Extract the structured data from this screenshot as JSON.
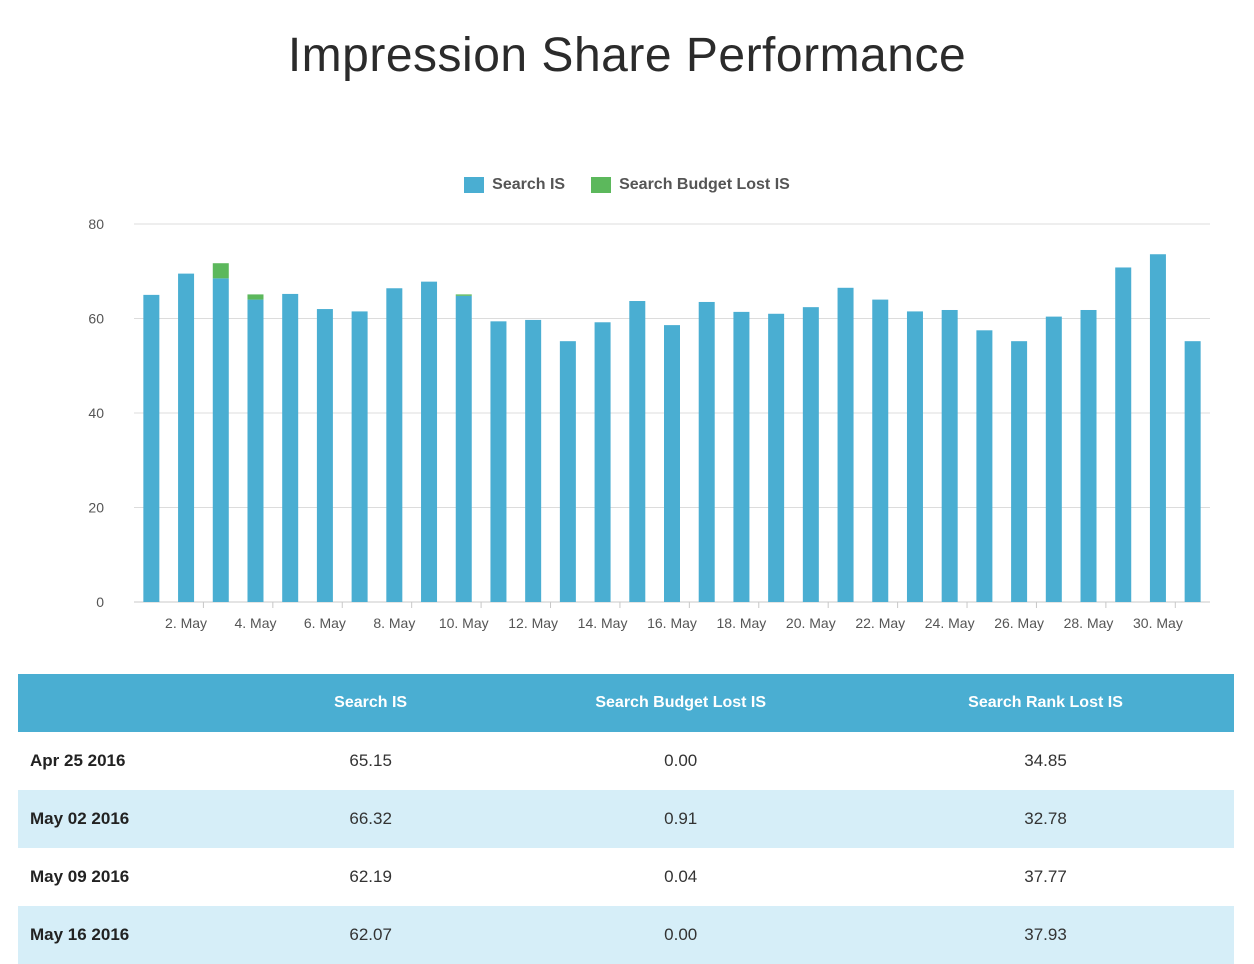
{
  "page": {
    "title": "Impression Share Performance"
  },
  "colors": {
    "search_is": "#4aaed2",
    "budget_lost": "#5cb85c",
    "header_bg": "#4aaed2",
    "stripe": "#d6eef8",
    "grid": "#d9d9d9"
  },
  "chart_data": {
    "type": "bar",
    "stacked": true,
    "title": "Impression Share Performance",
    "legend_position": "top-center",
    "grid": true,
    "ylim": [
      0,
      80
    ],
    "y_ticks": [
      "0",
      "20",
      "40",
      "60",
      "80"
    ],
    "categories": [
      "1. May",
      "2. May",
      "3. May",
      "4. May",
      "5. May",
      "6. May",
      "7. May",
      "8. May",
      "9. May",
      "10. May",
      "11. May",
      "12. May",
      "13. May",
      "14. May",
      "15. May",
      "16. May",
      "17. May",
      "18. May",
      "19. May",
      "20. May",
      "21. May",
      "22. May",
      "23. May",
      "24. May",
      "25. May",
      "26. May",
      "27. May",
      "28. May",
      "29. May",
      "30. May",
      "31. May"
    ],
    "x_tick_labels": [
      "2. May",
      "4. May",
      "6. May",
      "8. May",
      "10. May",
      "12. May",
      "14. May",
      "16. May",
      "18. May",
      "20. May",
      "22. May",
      "24. May",
      "26. May",
      "28. May",
      "30. May"
    ],
    "series": [
      {
        "name": "Search IS",
        "color": "#4aaed2",
        "values": [
          65,
          69.5,
          68.5,
          64,
          65.2,
          62,
          61.5,
          66.4,
          67.8,
          64.8,
          59.4,
          59.7,
          55.2,
          59.2,
          63.7,
          58.6,
          63.5,
          61.4,
          61,
          62.4,
          66.5,
          64,
          61.5,
          61.8,
          57.5,
          55.2,
          60.4,
          61.8,
          70.8,
          73.6,
          55.2
        ]
      },
      {
        "name": "Search Budget Lost IS",
        "color": "#5cb85c",
        "values": [
          0,
          0,
          3.2,
          1.1,
          0,
          0,
          0,
          0,
          0,
          0.3,
          0,
          0,
          0,
          0,
          0,
          0,
          0,
          0,
          0,
          0,
          0,
          0,
          0,
          0,
          0,
          0,
          0,
          0,
          0,
          0,
          0
        ]
      }
    ]
  },
  "table": {
    "headers": [
      "",
      "Search IS",
      "Search Budget Lost IS",
      "Search Rank Lost IS"
    ],
    "rows": [
      [
        "Apr 25 2016",
        "65.15",
        "0.00",
        "34.85"
      ],
      [
        "May 02 2016",
        "66.32",
        "0.91",
        "32.78"
      ],
      [
        "May 09 2016",
        "62.19",
        "0.04",
        "37.77"
      ],
      [
        "May 16 2016",
        "62.07",
        "0.00",
        "37.93"
      ]
    ]
  }
}
